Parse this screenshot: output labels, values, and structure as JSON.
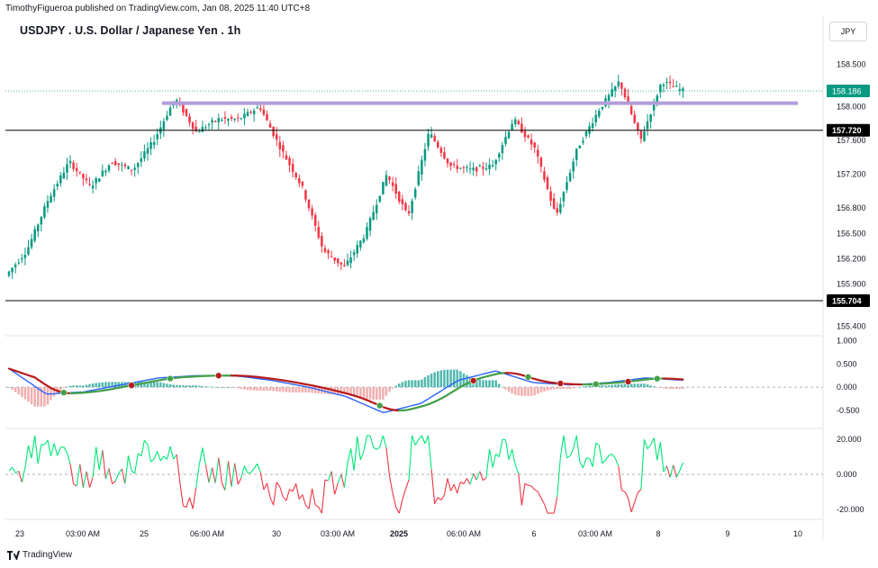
{
  "header": {
    "publisher": "TimothyFigueroa published on TradingView.com, Jan 08, 2025 11:40 UTC+8"
  },
  "title": "USDJPY . U.S. Dollar / Japanese Yen . 1h",
  "currency_button": "JPY",
  "logo_text": "TradingView",
  "colors": {
    "up": "#089981",
    "down": "#f23645",
    "resistance": "#b39ddb",
    "macd_line": "#2962ff",
    "signal_up": "#43a047",
    "signal_down": "#b71c1c",
    "osc_up": "#00e676",
    "osc_down": "#f23645",
    "last_price": "#089981",
    "level_line": "#000000"
  },
  "chart_data": [
    {
      "type": "candlestick",
      "title": "USDJPY . U.S. Dollar / Japanese Yen . 1h",
      "ylim": [
        155.3,
        158.75
      ],
      "y_ticks": [
        "158.500",
        "158.000",
        "157.600",
        "157.200",
        "156.800",
        "156.500",
        "156.200",
        "155.900",
        "155.400"
      ],
      "x_ticks": [
        "23",
        "03:00 AM",
        "25",
        "06:00 AM",
        "30",
        "03:00 AM",
        "2025",
        "06:00 AM",
        "6",
        "03:00 AM",
        "8",
        "9",
        "10"
      ],
      "last_price": {
        "value": 158.186,
        "label": "158.186"
      },
      "levels": [
        {
          "value": 157.72,
          "label": "157.720"
        },
        {
          "value": 155.704,
          "label": "155.704"
        }
      ],
      "resistance": 158.04,
      "path": [
        156.0,
        156.3,
        156.9,
        157.35,
        157.05,
        157.35,
        157.25,
        157.6,
        158.1,
        157.7,
        157.85,
        157.85,
        158.0,
        157.5,
        157.05,
        156.3,
        156.1,
        156.5,
        157.2,
        156.7,
        157.7,
        157.3,
        157.25,
        157.3,
        157.85,
        157.5,
        156.7,
        157.5,
        157.95,
        158.3,
        157.6,
        158.3,
        158.186
      ]
    },
    {
      "type": "line",
      "name_panel": "macd",
      "ylim": [
        -0.85,
        1.05
      ],
      "y_ticks": [
        "1.000",
        "0.500",
        "0.000",
        "-0.500"
      ],
      "path_macd": [
        0.4,
        -0.15,
        -0.1,
        0.05,
        0.2,
        0.25,
        0.25,
        0.15,
        0.0,
        -0.2,
        -0.55,
        -0.35,
        0.15,
        0.35,
        0.1,
        0.05,
        0.1,
        0.2,
        0.15
      ],
      "markers": [
        {
          "i": 0.08,
          "dir": "up"
        },
        {
          "i": 0.18,
          "dir": "down"
        },
        {
          "i": 0.24,
          "dir": "up"
        },
        {
          "i": 0.31,
          "dir": "down"
        },
        {
          "i": 0.55,
          "dir": "up"
        },
        {
          "i": 0.69,
          "dir": "down"
        },
        {
          "i": 0.77,
          "dir": "up"
        },
        {
          "i": 0.82,
          "dir": "down"
        },
        {
          "i": 0.87,
          "dir": "up"
        },
        {
          "i": 0.92,
          "dir": "down"
        },
        {
          "i": 0.96,
          "dir": "up"
        }
      ]
    },
    {
      "type": "line",
      "name_panel": "oscillator",
      "ylim": [
        -24,
        25
      ],
      "y_ticks": [
        "20.000",
        "0.000",
        "-20.000"
      ]
    }
  ]
}
